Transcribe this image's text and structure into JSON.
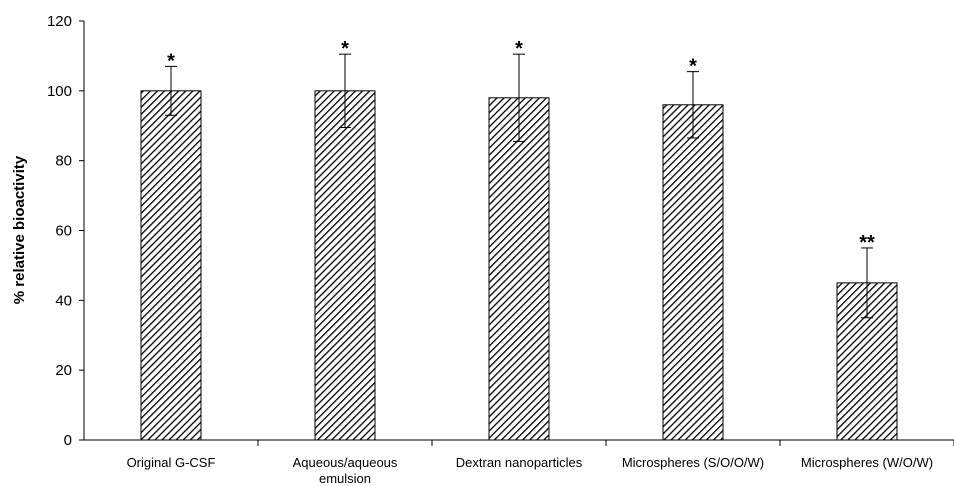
{
  "chart_data": {
    "type": "bar",
    "title": "",
    "xlabel": "",
    "ylabel": "% relative bioactivity",
    "ylim": [
      0,
      120
    ],
    "yticks": [
      0,
      20,
      40,
      60,
      80,
      100,
      120
    ],
    "grid": false,
    "legend": "none",
    "bar_fill": "diagonal-hatch",
    "bar_color": "#000000",
    "categories": [
      "Original G-CSF",
      "Aqueous/aqueous\nemulsion",
      "Dextran nanoparticles",
      "Microspheres (S/O/O/W)",
      "Microspheres (W/O/W)"
    ],
    "series": [
      {
        "values": [
          100,
          100,
          98,
          96,
          45
        ],
        "error": [
          7,
          10.5,
          12.5,
          9.5,
          10
        ]
      }
    ],
    "annotations": [
      "*",
      "*",
      "*",
      "*",
      "**"
    ]
  }
}
